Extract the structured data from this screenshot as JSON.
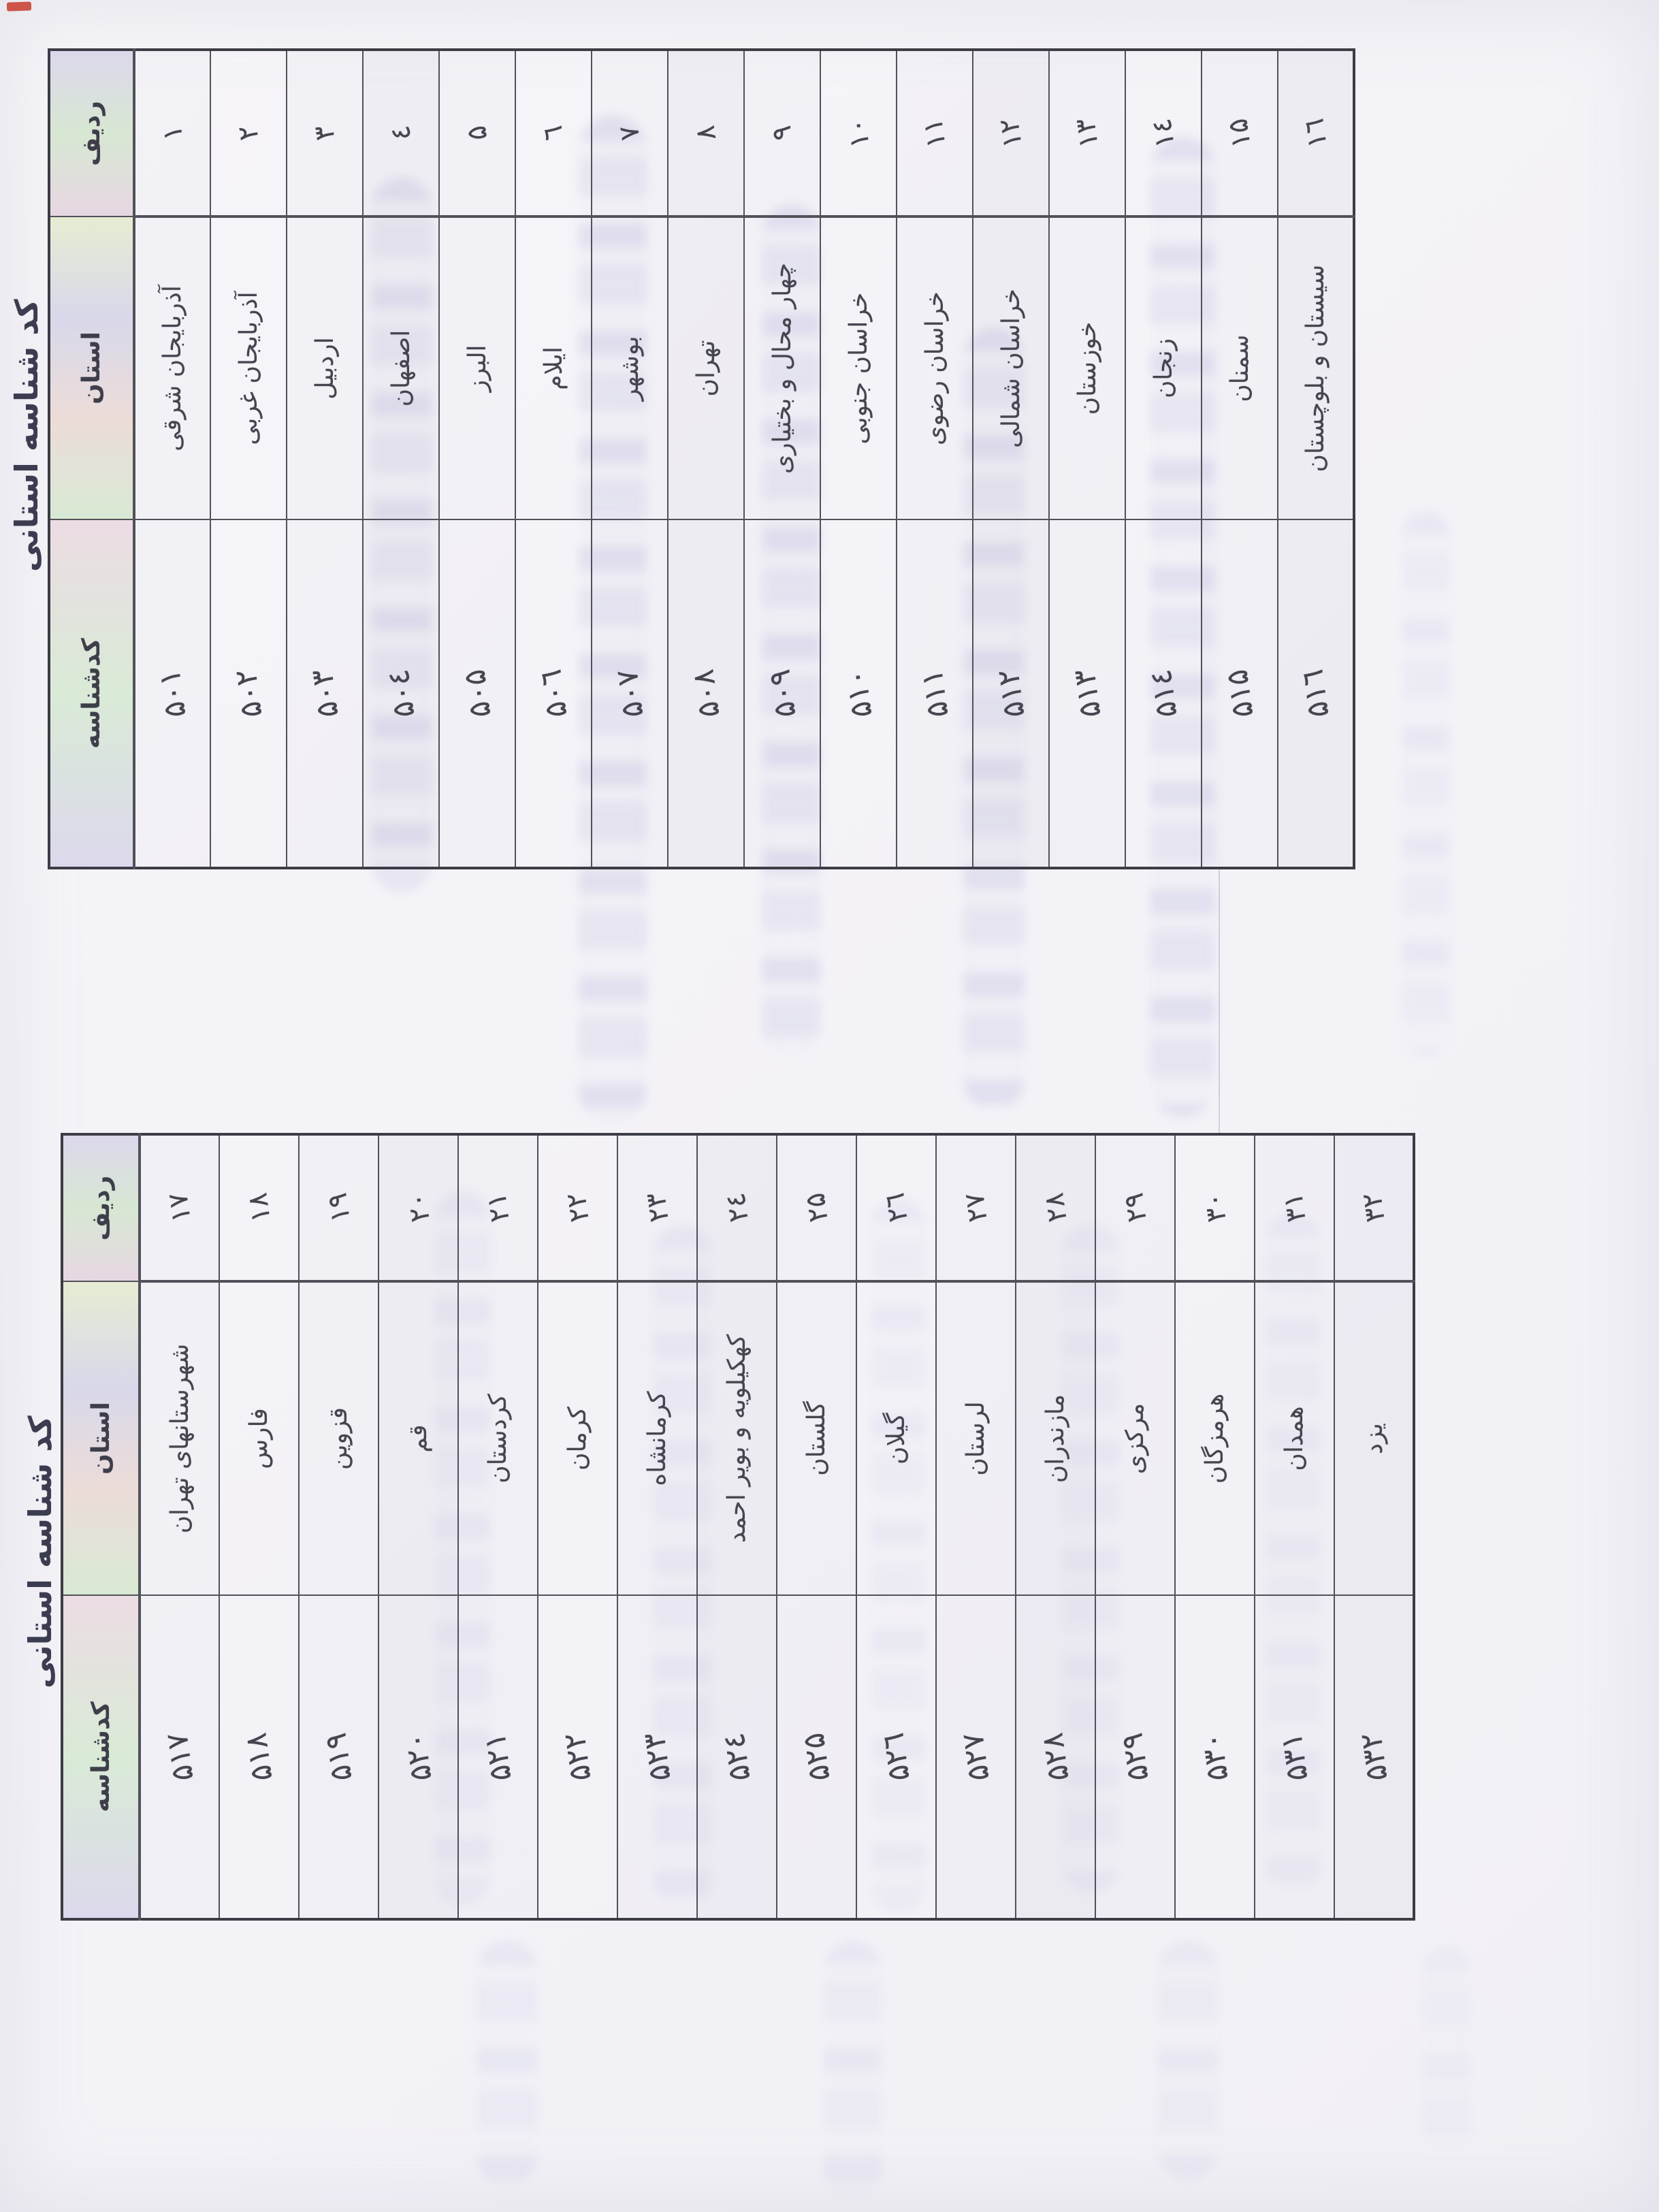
{
  "titles": {
    "table1": "کد شناسه استانی",
    "table2": "کد شناسه استانی"
  },
  "table1": {
    "headers": {
      "row_no": "ردیف",
      "province": "استان",
      "code": "کدشناسه"
    },
    "rows": [
      {
        "no": "۱",
        "province": "آذربایجان شرقی",
        "code": "۵۰۱"
      },
      {
        "no": "۲",
        "province": "آذربایجان غربی",
        "code": "۵۰۲"
      },
      {
        "no": "۳",
        "province": "اردبیل",
        "code": "۵۰۳"
      },
      {
        "no": "٤",
        "province": "اصفهان",
        "code": "۵۰٤"
      },
      {
        "no": "۵",
        "province": "البرز",
        "code": "۵۰۵"
      },
      {
        "no": "٦",
        "province": "ایلام",
        "code": "۵۰٦"
      },
      {
        "no": "۷",
        "province": "بوشهر",
        "code": "۵۰۷"
      },
      {
        "no": "۸",
        "province": "تهران",
        "code": "۵۰۸"
      },
      {
        "no": "۹",
        "province": "چهار محال و بختیاری",
        "code": "۵۰۹"
      },
      {
        "no": "۱۰",
        "province": "خراسان جنوبی",
        "code": "۵۱۰"
      },
      {
        "no": "۱۱",
        "province": "خراسان رضوی",
        "code": "۵۱۱"
      },
      {
        "no": "۱۲",
        "province": "خراسان شمالی",
        "code": "۵۱۲"
      },
      {
        "no": "۱۳",
        "province": "خوزستان",
        "code": "۵۱۳"
      },
      {
        "no": "۱٤",
        "province": "زنجان",
        "code": "۵۱٤"
      },
      {
        "no": "۱۵",
        "province": "سمنان",
        "code": "۵۱۵"
      },
      {
        "no": "۱٦",
        "province": "سیستان و بلوچستان",
        "code": "۵۱٦"
      }
    ]
  },
  "table2": {
    "headers": {
      "row_no": "ردیف",
      "province": "استان",
      "code": "کدشناسه"
    },
    "rows": [
      {
        "no": "۱۷",
        "province": "شهرستانهای تهران",
        "code": "۵۱۷"
      },
      {
        "no": "۱۸",
        "province": "فارس",
        "code": "۵۱۸"
      },
      {
        "no": "۱۹",
        "province": "قزوین",
        "code": "۵۱۹"
      },
      {
        "no": "۲۰",
        "province": "قم",
        "code": "۵۲۰"
      },
      {
        "no": "۲۱",
        "province": "کردستان",
        "code": "۵۲۱"
      },
      {
        "no": "۲۲",
        "province": "کرمان",
        "code": "۵۲۲"
      },
      {
        "no": "۲۳",
        "province": "کرمانشاه",
        "code": "۵۲۳"
      },
      {
        "no": "۲٤",
        "province": "کهکیلویه و بویر احمد",
        "code": "۵۲٤"
      },
      {
        "no": "۲۵",
        "province": "گلستان",
        "code": "۵۲۵"
      },
      {
        "no": "۲٦",
        "province": "گیلان",
        "code": "۵۲٦"
      },
      {
        "no": "۲۷",
        "province": "لرستان",
        "code": "۵۲۷"
      },
      {
        "no": "۲۸",
        "province": "مازندران",
        "code": "۵۲۸"
      },
      {
        "no": "۲۹",
        "province": "مرکزی",
        "code": "۵۲۹"
      },
      {
        "no": "۳۰",
        "province": "هرمزگان",
        "code": "۵۳۰"
      },
      {
        "no": "۳۱",
        "province": "همدان",
        "code": "۵۳۱"
      },
      {
        "no": "۳۲",
        "province": "یزد",
        "code": "۵۳۲"
      }
    ]
  },
  "colors": {
    "paper": "#f5f4f7",
    "ink": "#45454f",
    "table_line": "#51515a",
    "header_band_pastels": [
      "#d9ecd2",
      "#ecd9e4",
      "#d9d6ee",
      "#e8ecd2"
    ],
    "bleedthrough_tint": "#807ac4",
    "red_mark": "#c8392b"
  }
}
